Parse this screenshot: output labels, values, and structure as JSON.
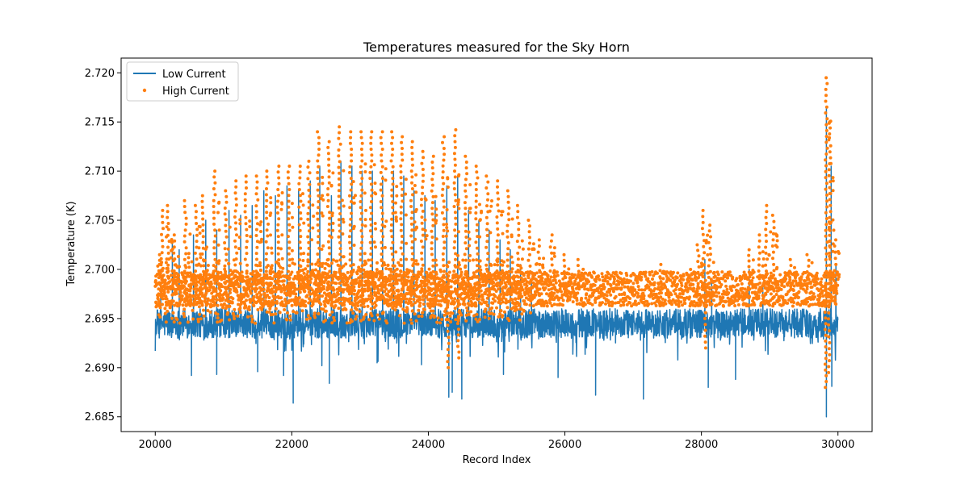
{
  "chart_data": {
    "type": "line",
    "title": "Temperatures measured for the Sky Horn",
    "xlabel": "Record Index",
    "ylabel": "Temperature (K)",
    "xlim": [
      19500,
      30500
    ],
    "ylim": [
      2.6835,
      2.7215
    ],
    "xticks": [
      20000,
      22000,
      24000,
      26000,
      28000,
      30000
    ],
    "yticks": [
      2.685,
      2.69,
      2.695,
      2.7,
      2.705,
      2.71,
      2.715,
      2.72
    ],
    "ytick_labels": [
      "2.685",
      "2.690",
      "2.695",
      "2.700",
      "2.705",
      "2.710",
      "2.715",
      "2.720"
    ],
    "legend_position": "upper-left",
    "colors": {
      "low": "#1f77b4",
      "high": "#ff7f0e"
    },
    "series": [
      {
        "name": "Low Current",
        "kind": "line",
        "baseline": 2.6945,
        "noise_band": [
          2.6925,
          2.6955
        ],
        "spikes_up": [
          {
            "x": 20080,
            "y": 2.6985
          },
          {
            "x": 20250,
            "y": 2.703
          },
          {
            "x": 20350,
            "y": 2.702
          },
          {
            "x": 20560,
            "y": 2.7035
          },
          {
            "x": 20740,
            "y": 2.705
          },
          {
            "x": 20900,
            "y": 2.704
          },
          {
            "x": 21080,
            "y": 2.706
          },
          {
            "x": 21250,
            "y": 2.7055
          },
          {
            "x": 21420,
            "y": 2.7065
          },
          {
            "x": 21590,
            "y": 2.708
          },
          {
            "x": 21760,
            "y": 2.7075
          },
          {
            "x": 21930,
            "y": 2.7085
          },
          {
            "x": 22100,
            "y": 2.708
          },
          {
            "x": 22270,
            "y": 2.709
          },
          {
            "x": 22410,
            "y": 2.7105
          },
          {
            "x": 22580,
            "y": 2.7075
          },
          {
            "x": 22720,
            "y": 2.711
          },
          {
            "x": 22880,
            "y": 2.7105
          },
          {
            "x": 23030,
            "y": 2.71
          },
          {
            "x": 23180,
            "y": 2.71
          },
          {
            "x": 23330,
            "y": 2.7095
          },
          {
            "x": 23490,
            "y": 2.71
          },
          {
            "x": 23640,
            "y": 2.7095
          },
          {
            "x": 23790,
            "y": 2.708
          },
          {
            "x": 23950,
            "y": 2.7075
          },
          {
            "x": 24100,
            "y": 2.707
          },
          {
            "x": 24270,
            "y": 2.7085
          },
          {
            "x": 24430,
            "y": 2.7095
          },
          {
            "x": 24590,
            "y": 2.706
          },
          {
            "x": 24740,
            "y": 2.705
          },
          {
            "x": 24890,
            "y": 2.704
          },
          {
            "x": 25050,
            "y": 2.703
          },
          {
            "x": 25200,
            "y": 2.702
          },
          {
            "x": 25350,
            "y": 2.7005
          },
          {
            "x": 25510,
            "y": 2.699
          },
          {
            "x": 28050,
            "y": 2.701
          },
          {
            "x": 28150,
            "y": 2.699
          },
          {
            "x": 28700,
            "y": 2.7
          },
          {
            "x": 28900,
            "y": 2.6985
          },
          {
            "x": 29830,
            "y": 2.7165
          },
          {
            "x": 29900,
            "y": 2.7105
          },
          {
            "x": 29970,
            "y": 2.7005
          }
        ],
        "spikes_down": [
          {
            "x": 20530,
            "y": 2.6892
          },
          {
            "x": 20900,
            "y": 2.6893
          },
          {
            "x": 21500,
            "y": 2.6896
          },
          {
            "x": 21880,
            "y": 2.6892
          },
          {
            "x": 22020,
            "y": 2.6864
          },
          {
            "x": 22440,
            "y": 2.6902
          },
          {
            "x": 22550,
            "y": 2.6884
          },
          {
            "x": 23250,
            "y": 2.6905
          },
          {
            "x": 23900,
            "y": 2.6903
          },
          {
            "x": 24300,
            "y": 2.687
          },
          {
            "x": 24350,
            "y": 2.6875
          },
          {
            "x": 24490,
            "y": 2.6868
          },
          {
            "x": 25100,
            "y": 2.6893
          },
          {
            "x": 25900,
            "y": 2.689
          },
          {
            "x": 26450,
            "y": 2.6872
          },
          {
            "x": 27150,
            "y": 2.6868
          },
          {
            "x": 28100,
            "y": 2.688
          },
          {
            "x": 28500,
            "y": 2.6888
          },
          {
            "x": 29830,
            "y": 2.685
          },
          {
            "x": 29910,
            "y": 2.6881
          }
        ]
      },
      {
        "name": "High Current",
        "kind": "scatter",
        "baseline": 2.698,
        "noise_band": [
          2.696,
          2.6995
        ],
        "clusters": [
          {
            "x": 20050,
            "ymax": 2.7015
          },
          {
            "x": 20100,
            "ymax": 2.706
          },
          {
            "x": 20190,
            "ymax": 2.7065
          },
          {
            "x": 20280,
            "ymax": 2.7035
          },
          {
            "x": 20440,
            "ymax": 2.707
          },
          {
            "x": 20600,
            "ymax": 2.7065
          },
          {
            "x": 20700,
            "ymax": 2.7075
          },
          {
            "x": 20870,
            "ymax": 2.71
          },
          {
            "x": 21030,
            "ymax": 2.708
          },
          {
            "x": 21180,
            "ymax": 2.709
          },
          {
            "x": 21330,
            "ymax": 2.7095
          },
          {
            "x": 21490,
            "ymax": 2.7095
          },
          {
            "x": 21640,
            "ymax": 2.71
          },
          {
            "x": 21800,
            "ymax": 2.7105
          },
          {
            "x": 21960,
            "ymax": 2.7105
          },
          {
            "x": 22120,
            "ymax": 2.7105
          },
          {
            "x": 22250,
            "ymax": 2.711
          },
          {
            "x": 22390,
            "ymax": 2.714
          },
          {
            "x": 22540,
            "ymax": 2.713
          },
          {
            "x": 22700,
            "ymax": 2.7145
          },
          {
            "x": 22860,
            "ymax": 2.714
          },
          {
            "x": 23020,
            "ymax": 2.714
          },
          {
            "x": 23160,
            "ymax": 2.714
          },
          {
            "x": 23320,
            "ymax": 2.714
          },
          {
            "x": 23470,
            "ymax": 2.714
          },
          {
            "x": 23610,
            "ymax": 2.7135
          },
          {
            "x": 23760,
            "ymax": 2.713
          },
          {
            "x": 23910,
            "ymax": 2.712
          },
          {
            "x": 24060,
            "ymax": 2.7115
          },
          {
            "x": 24220,
            "ymax": 2.7135
          },
          {
            "x": 24390,
            "ymax": 2.7142
          },
          {
            "x": 24550,
            "ymax": 2.7115
          },
          {
            "x": 24710,
            "ymax": 2.7105
          },
          {
            "x": 24860,
            "ymax": 2.7095
          },
          {
            "x": 25020,
            "ymax": 2.709
          },
          {
            "x": 25170,
            "ymax": 2.708
          },
          {
            "x": 25320,
            "ymax": 2.7065
          },
          {
            "x": 25480,
            "ymax": 2.705
          },
          {
            "x": 25620,
            "ymax": 2.703
          },
          {
            "x": 25800,
            "ymax": 2.7035
          },
          {
            "x": 26000,
            "ymax": 2.7015
          },
          {
            "x": 26200,
            "ymax": 2.701
          },
          {
            "x": 27400,
            "ymax": 2.7005
          },
          {
            "x": 27850,
            "ymax": 2.7
          },
          {
            "x": 27950,
            "ymax": 2.7025
          },
          {
            "x": 28030,
            "ymax": 2.706
          },
          {
            "x": 28120,
            "ymax": 2.7045
          },
          {
            "x": 28700,
            "ymax": 2.702
          },
          {
            "x": 28850,
            "ymax": 2.7035
          },
          {
            "x": 28950,
            "ymax": 2.7065
          },
          {
            "x": 29050,
            "ymax": 2.7055
          },
          {
            "x": 29300,
            "ymax": 2.701
          },
          {
            "x": 29560,
            "ymax": 2.7015
          },
          {
            "x": 29830,
            "ymax": 2.7195
          },
          {
            "x": 29880,
            "ymax": 2.715
          },
          {
            "x": 29960,
            "ymax": 2.703
          }
        ],
        "dips": [
          {
            "x": 24290,
            "ymin": 2.69
          },
          {
            "x": 24440,
            "ymin": 2.691
          },
          {
            "x": 28060,
            "ymin": 2.692
          },
          {
            "x": 29820,
            "ymin": 2.688
          },
          {
            "x": 29870,
            "ymin": 2.6895
          }
        ]
      }
    ]
  }
}
